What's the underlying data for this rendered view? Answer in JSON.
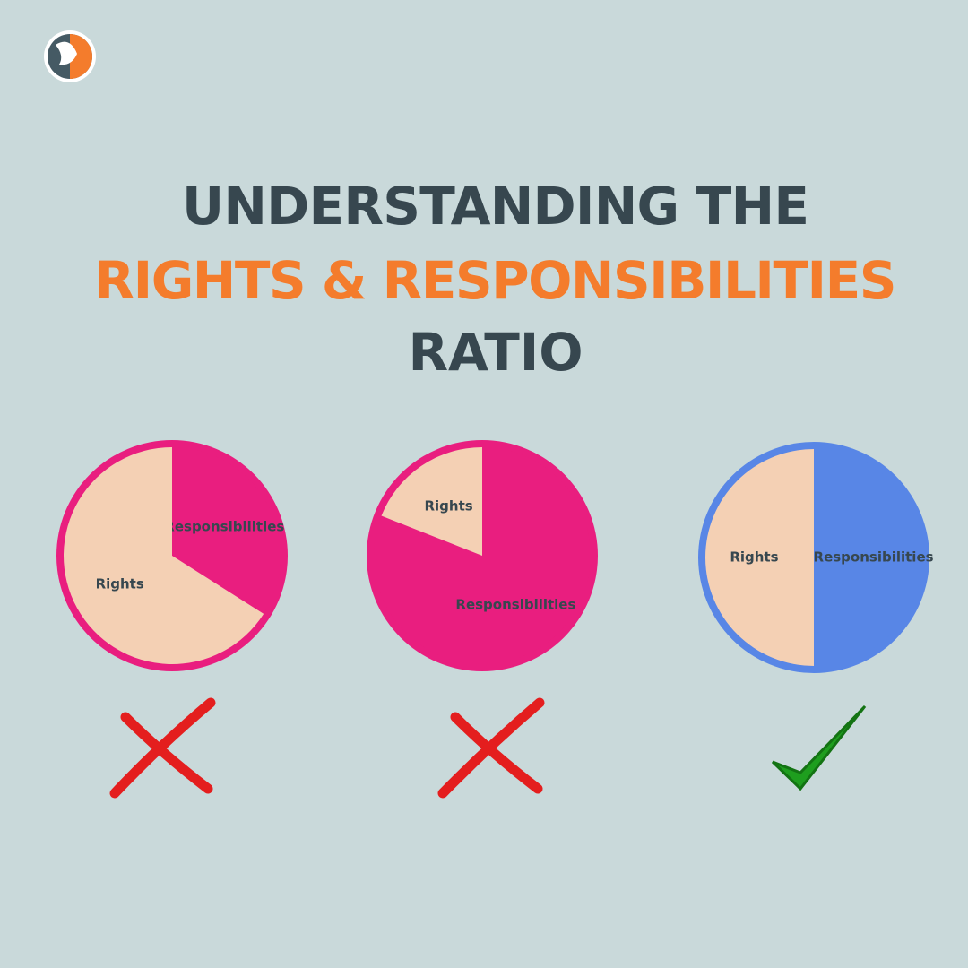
{
  "header": {
    "line1": "UNDERSTANDING THE",
    "line2": "RIGHTS & RESPONSIBILITIES",
    "line3": "RATIO"
  },
  "chart_data": [
    {
      "type": "pie",
      "categories": [
        "Responsibilities",
        "Rights"
      ],
      "values": [
        34,
        66
      ],
      "colors": [
        "#e91e7f",
        "#f4d0b4"
      ],
      "border_color": "#e91e7f"
    },
    {
      "type": "pie",
      "categories": [
        "Responsibilities",
        "Rights"
      ],
      "values": [
        81,
        19
      ],
      "colors": [
        "#e91e7f",
        "#f4d0b4"
      ],
      "border_color": "#e91e7f"
    },
    {
      "type": "pie",
      "categories": [
        "Responsibilities",
        "Rights"
      ],
      "values": [
        50,
        50
      ],
      "colors": [
        "#5886e6",
        "#f4d0b4"
      ],
      "border_color": "#5886e6"
    }
  ]
}
